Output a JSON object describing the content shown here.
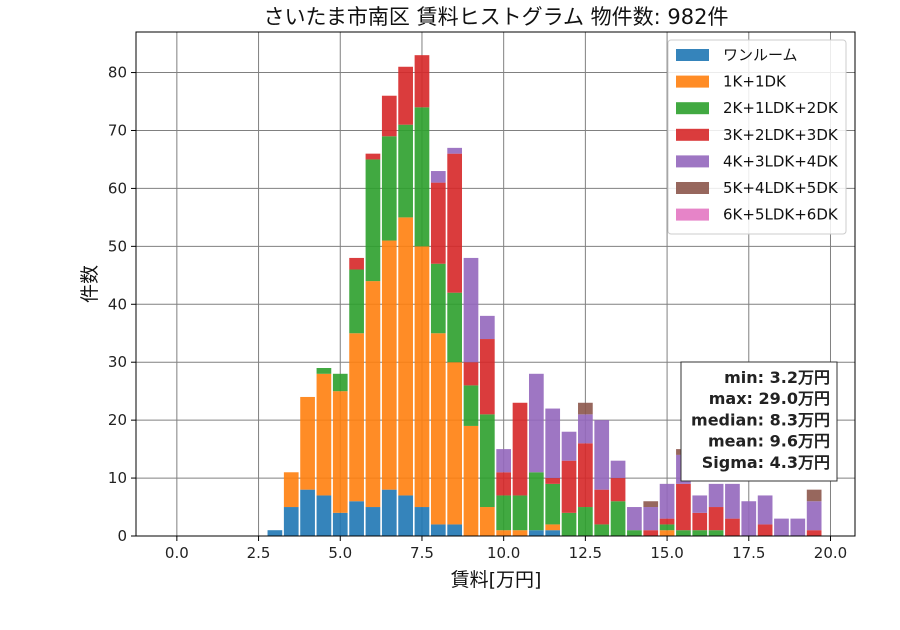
{
  "chart_data": {
    "type": "bar",
    "stacked": true,
    "title": "さいたま市南区 賃料ヒストグラム 物件数: 982件",
    "xlabel": "賃料[万円]",
    "ylabel": "件数",
    "xlim": [
      -1.25,
      20.75
    ],
    "ylim": [
      0,
      87
    ],
    "xticks": [
      0,
      2.5,
      5,
      7.5,
      10,
      12.5,
      15,
      17.5,
      20
    ],
    "xtick_labels": [
      "0.0",
      "2.5",
      "5.0",
      "7.5",
      "10.0",
      "12.5",
      "15.0",
      "17.5",
      "20.0"
    ],
    "yticks": [
      0,
      10,
      20,
      30,
      40,
      50,
      60,
      70,
      80
    ],
    "grid": true,
    "legend_position": "top-right",
    "bin_width": 0.5,
    "bin_centers": [
      3.0,
      3.5,
      4.0,
      4.5,
      5.0,
      5.5,
      6.0,
      6.5,
      7.0,
      7.5,
      8.0,
      8.5,
      9.0,
      9.5,
      10.0,
      10.5,
      11.0,
      11.5,
      12.0,
      12.5,
      13.0,
      13.5,
      14.0,
      14.5,
      15.0,
      15.5,
      16.0,
      16.5,
      17.0,
      17.5,
      18.0,
      18.5,
      19.0,
      19.5
    ],
    "series": [
      {
        "name": "ワンルーム",
        "color": "#1f77b4",
        "values": [
          1,
          5,
          8,
          7,
          4,
          6,
          5,
          8,
          7,
          5,
          2,
          2,
          0,
          0,
          0,
          0,
          1,
          1,
          0,
          0,
          0,
          0,
          0,
          0,
          0,
          0,
          0,
          0,
          0,
          0,
          0,
          0,
          0,
          0
        ]
      },
      {
        "name": "1K+1DK",
        "color": "#ff7f0e",
        "values": [
          0,
          6,
          16,
          21,
          21,
          29,
          39,
          43,
          48,
          45,
          33,
          28,
          19,
          5,
          1,
          1,
          0,
          1,
          0,
          0,
          0,
          0,
          0,
          0,
          1,
          0,
          0,
          0,
          0,
          0,
          0,
          0,
          0,
          0
        ]
      },
      {
        "name": "2K+1LDK+2DK",
        "color": "#2ca02c",
        "values": [
          0,
          0,
          0,
          1,
          3,
          11,
          21,
          18,
          16,
          24,
          12,
          12,
          7,
          16,
          6,
          6,
          10,
          7,
          4,
          5,
          2,
          6,
          1,
          0,
          1,
          1,
          1,
          1,
          0,
          0,
          0,
          0,
          0,
          0
        ]
      },
      {
        "name": "3K+2LDK+3DK",
        "color": "#d62728",
        "values": [
          0,
          0,
          0,
          0,
          0,
          2,
          1,
          7,
          10,
          9,
          14,
          24,
          4,
          13,
          4,
          16,
          0,
          1,
          9,
          11,
          6,
          4,
          0,
          1,
          1,
          8,
          3,
          4,
          3,
          0,
          2,
          0,
          0,
          1
        ]
      },
      {
        "name": "4K+3LDK+4DK",
        "color": "#9467bd",
        "values": [
          0,
          0,
          0,
          0,
          0,
          0,
          0,
          0,
          0,
          0,
          2,
          1,
          18,
          4,
          4,
          0,
          17,
          12,
          5,
          5,
          12,
          3,
          4,
          4,
          6,
          5,
          3,
          4,
          6,
          6,
          5,
          3,
          3,
          5
        ]
      },
      {
        "name": "5K+4LDK+5DK",
        "color": "#8c564b",
        "values": [
          0,
          0,
          0,
          0,
          0,
          0,
          0,
          0,
          0,
          0,
          0,
          0,
          0,
          0,
          0,
          0,
          0,
          0,
          0,
          2,
          0,
          0,
          0,
          1,
          0,
          1,
          0,
          0,
          0,
          0,
          0,
          0,
          0,
          2
        ]
      },
      {
        "name": "6K+5LDK+6DK",
        "color": "#e377c2",
        "values": [
          0,
          0,
          0,
          0,
          0,
          0,
          0,
          0,
          0,
          0,
          0,
          0,
          0,
          0,
          0,
          0,
          0,
          0,
          0,
          0,
          0,
          0,
          0,
          0,
          0,
          0,
          0,
          0,
          0,
          0,
          0,
          0,
          0,
          0
        ]
      }
    ],
    "stats_box": {
      "lines": [
        "min: 3.2万円",
        "max: 29.0万円",
        "median: 8.3万円",
        "mean: 9.6万円",
        "Sigma: 4.3万円"
      ],
      "position": "right"
    }
  }
}
